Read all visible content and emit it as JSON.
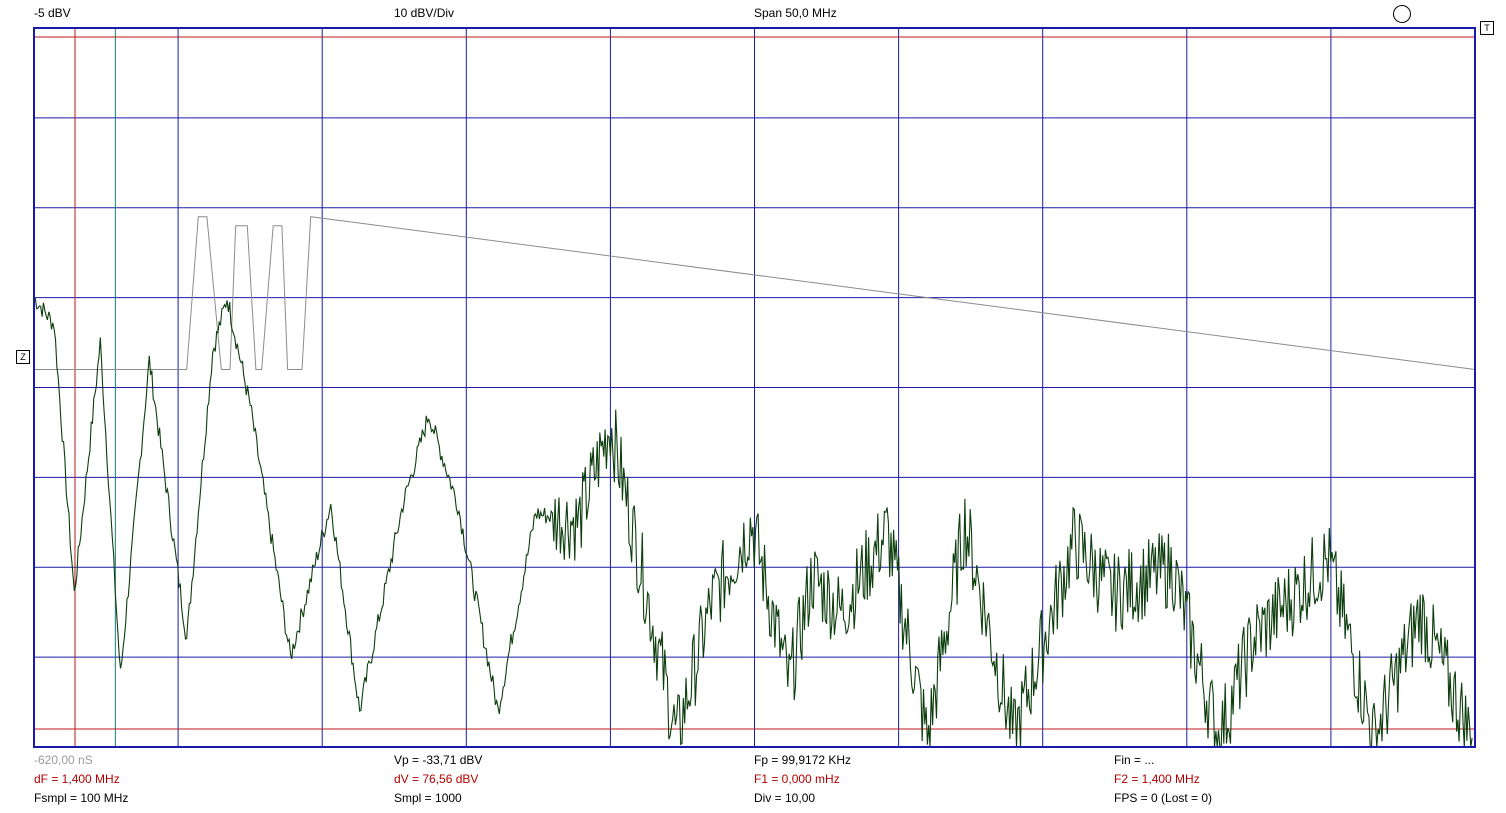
{
  "header": {
    "ref_level": "-5 dBV",
    "scale": "10 dBV/Div",
    "span": "Span 50,0 MHz"
  },
  "markers": {
    "trigger": "T",
    "zero": "Z"
  },
  "footer": {
    "time": "-620,00 nS",
    "vp": "Vp = -33,71 dBV",
    "fp": "Fp = 99,9172 KHz",
    "fin": "Fin = ...",
    "df": "dF = 1,400 MHz",
    "dv": "dV = 76,56 dBV",
    "f1": "F1 = 0,000 mHz",
    "f2": "F2 = 1,400 MHz",
    "fsmpl": "Fsmpl = 100 MHz",
    "smpl": "Smpl = 1000",
    "div": "Div = 10,00",
    "fps": "FPS = 0 (Lost = 0)"
  },
  "colors": {
    "grid": "#1a1aa8",
    "spectrum": "#0c3d0c",
    "time_trace": "#8c8c8c",
    "cursor": "#c01818",
    "cursor2": "#1a7a7a"
  },
  "chart_data": {
    "type": "line",
    "x_unit": "MHz",
    "y_unit": "dBV",
    "xlim": [
      0,
      50
    ],
    "ylim": [
      -85,
      -5
    ],
    "divisions": {
      "x": 10,
      "y": 8
    },
    "grid": true,
    "cursors": {
      "f1_mhz": 0.0,
      "f2_mhz": 1.4,
      "level_a_dbv": -6,
      "level_b_dbv": -83
    },
    "spectrum_envelope": {
      "x": [
        0,
        0.7,
        1.4,
        2.3,
        3.0,
        4.0,
        5.3,
        6.2,
        6.7,
        7.5,
        8.9,
        10.3,
        11.3,
        12.8,
        13.7,
        14.7,
        16.1,
        17.4,
        18.9,
        20.0,
        21.2,
        22.3,
        23.5,
        24.9,
        26.2,
        27.0,
        28.0,
        29.6,
        31.0,
        32.3,
        34.0,
        36.1,
        37.4,
        39.5,
        41.1,
        42.3,
        44.9,
        46.5,
        48.1,
        49.9
      ],
      "y": [
        -35,
        -38,
        -68,
        -40,
        -77,
        -42,
        -73,
        -41,
        -35,
        -47,
        -75,
        -58,
        -81,
        -58,
        -48,
        -58,
        -81,
        -59,
        -60,
        -49,
        -67,
        -84,
        -69,
        -60,
        -78,
        -66,
        -70,
        -61,
        -84,
        -60,
        -84,
        -62,
        -68,
        -65,
        -84,
        -73,
        -64,
        -84,
        -70,
        -84
      ]
    },
    "time_trace": {
      "x": [
        0,
        5.3,
        5.7,
        6.0,
        6.5,
        6.8,
        7.0,
        7.4,
        7.7,
        7.9,
        8.3,
        8.6,
        8.8,
        9.3,
        9.6,
        50
      ],
      "y": [
        -43,
        -43,
        -26,
        -26,
        -43,
        -43,
        -27,
        -27,
        -43,
        -43,
        -27,
        -27,
        -43,
        -43,
        -26,
        -43
      ]
    }
  }
}
